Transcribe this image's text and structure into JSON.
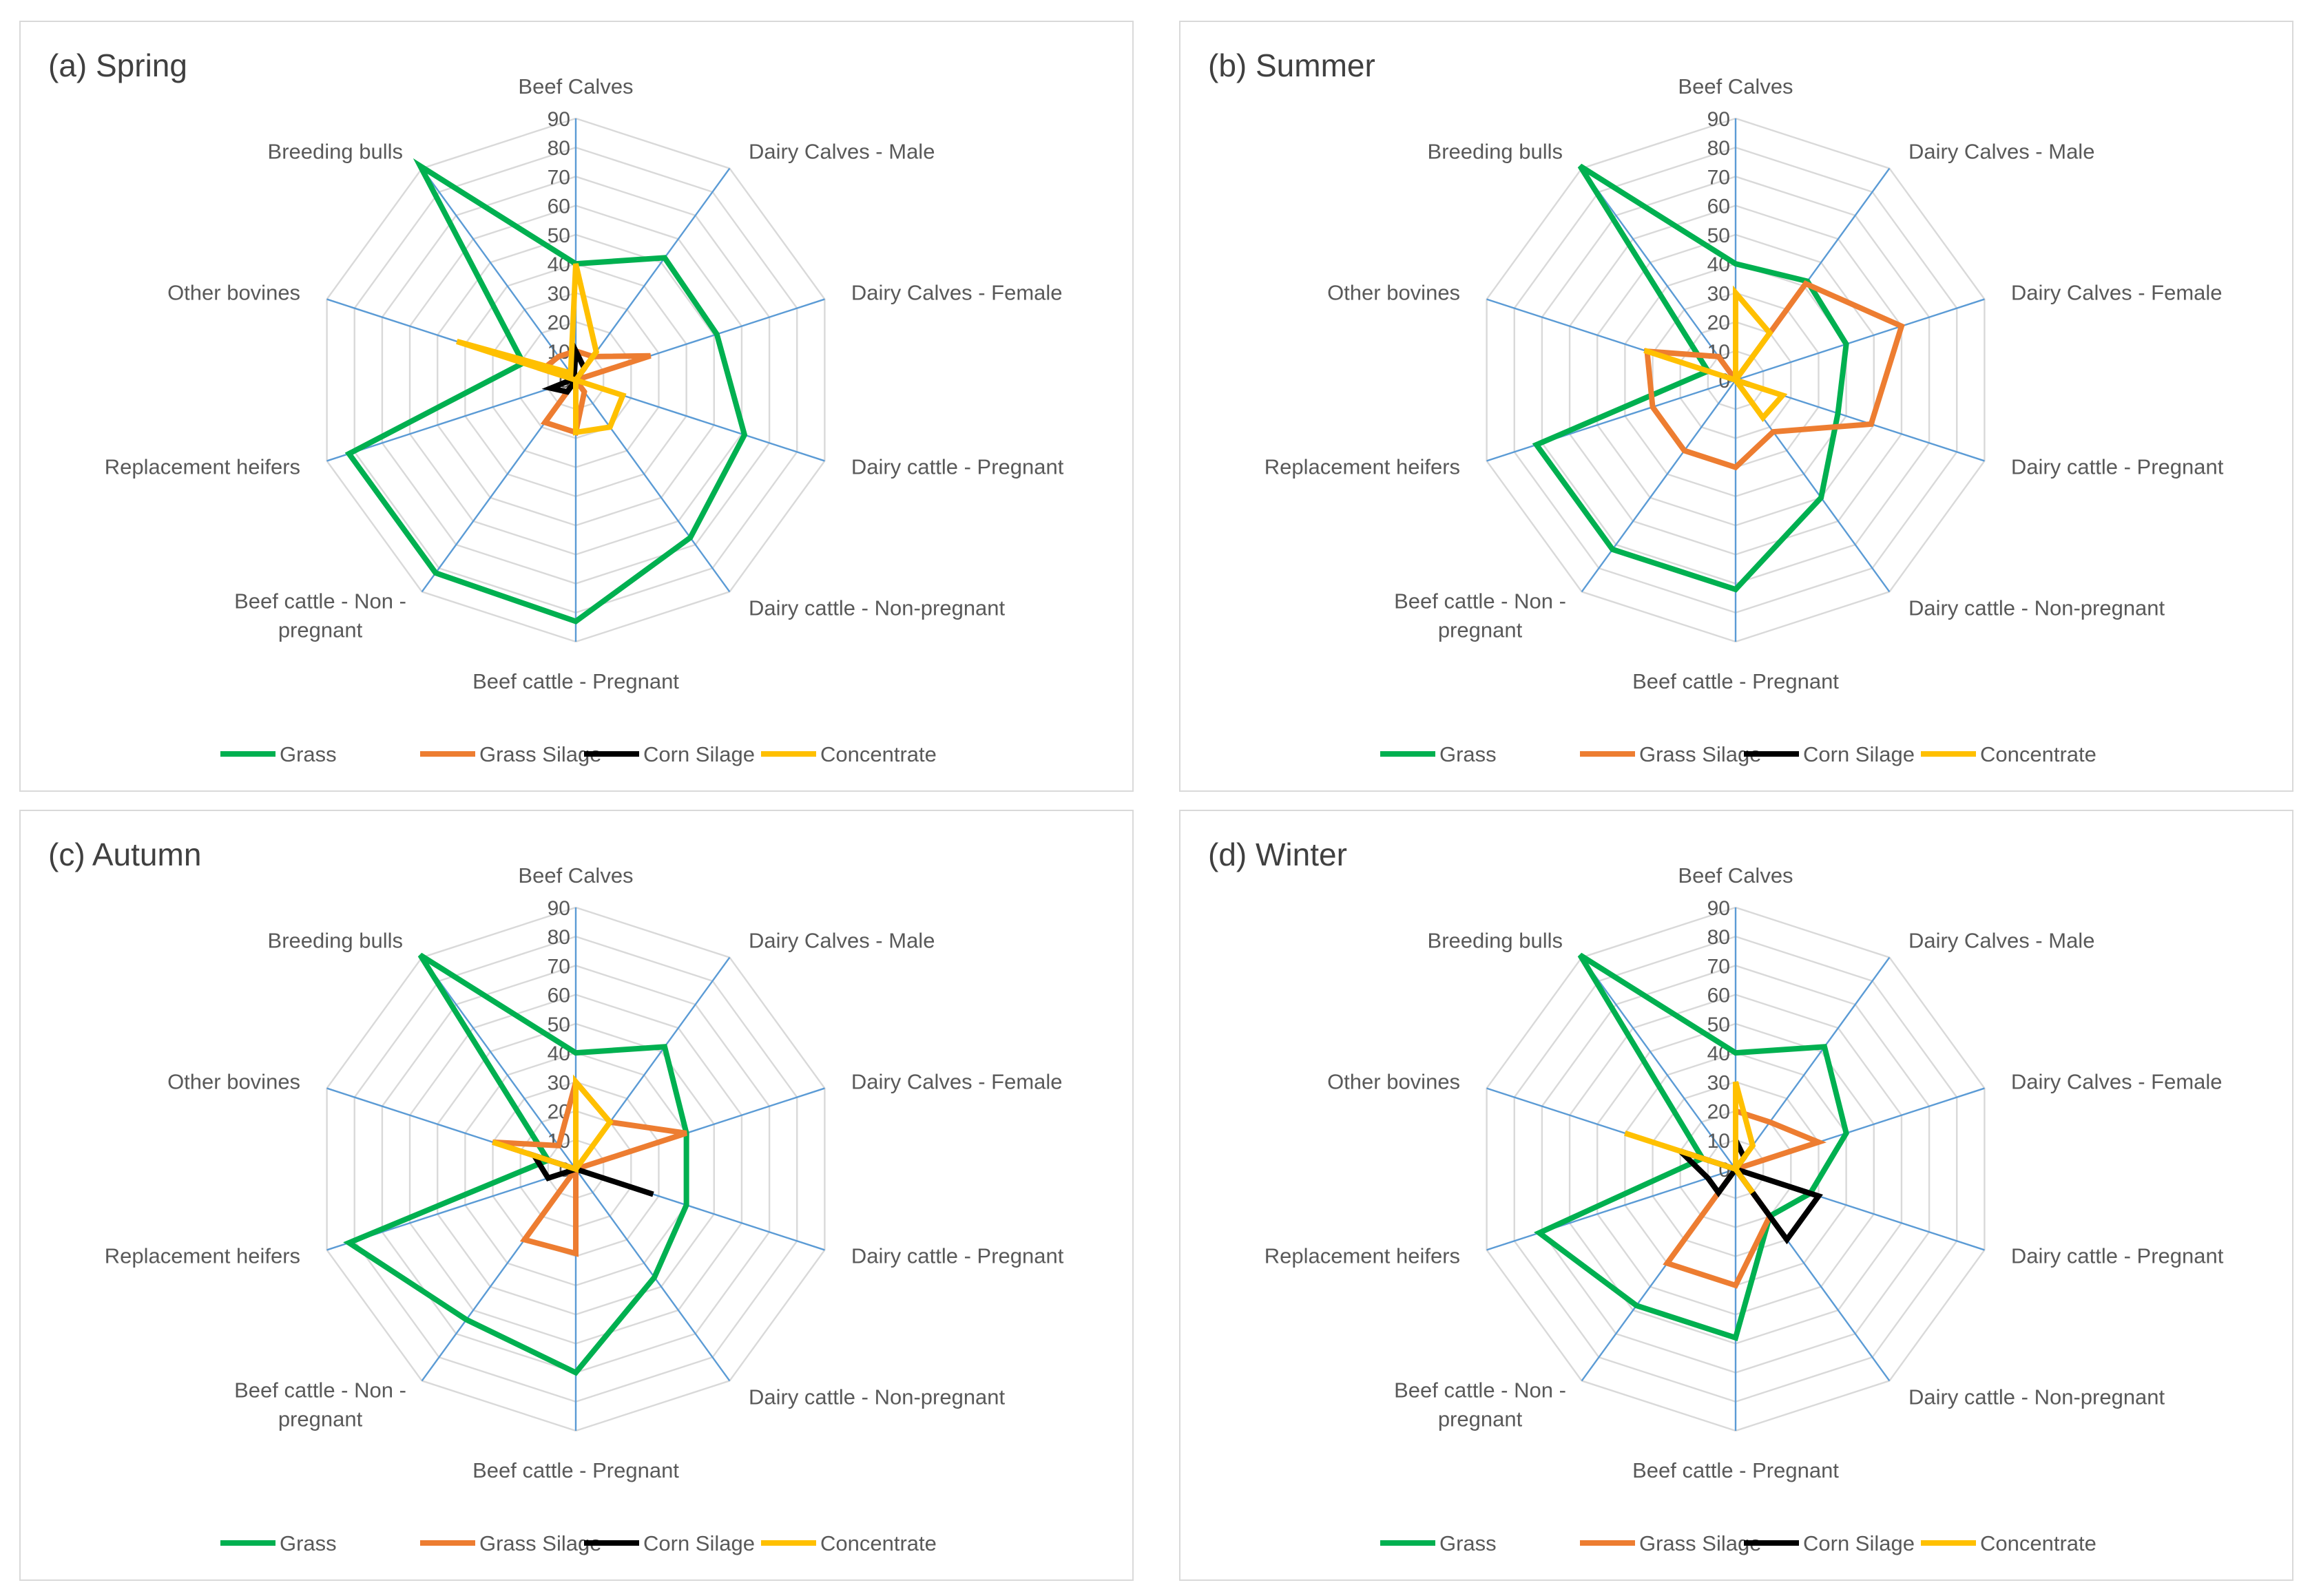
{
  "colors": {
    "Grass": "#00b050",
    "Grass Silage": "#ed7d31",
    "Corn Silage": "#000000",
    "Concentrate": "#ffc000",
    "grid": "#d9d9d9",
    "spoke": "#5b9bd5"
  },
  "chart_data": [
    {
      "type": "radar",
      "title": "(a) Spring",
      "categories": [
        "Beef Calves",
        "Dairy Calves - Male",
        "Dairy Calves - Female",
        "Dairy cattle - Pregnant",
        "Dairy cattle - Non-pregnant",
        "Beef cattle - Pregnant",
        "Beef cattle - Non - pregnant",
        "Replacement heifers",
        "Other bovines",
        "Breeding bulls"
      ],
      "rlim": [
        0,
        90
      ],
      "ticks": [
        0,
        10,
        20,
        30,
        40,
        50,
        60,
        70,
        80,
        90
      ],
      "legend": "bottom",
      "series": [
        {
          "name": "Grass",
          "values": [
            40,
            52,
            51,
            61,
            67,
            83,
            82,
            82,
            19,
            91
          ]
        },
        {
          "name": "Grass Silage",
          "values": [
            10,
            10,
            27,
            0,
            5,
            18,
            18,
            0,
            12,
            10
          ]
        },
        {
          "name": "Corn Silage",
          "values": [
            10,
            5,
            0,
            0,
            0,
            0,
            5,
            9,
            1,
            1
          ]
        },
        {
          "name": "Concentrate",
          "values": [
            40,
            12,
            0,
            17,
            20,
            18,
            0,
            0,
            43,
            3
          ]
        }
      ]
    },
    {
      "type": "radar",
      "title": "(b) Summer",
      "categories": [
        "Beef Calves",
        "Dairy Calves - Male",
        "Dairy Calves - Female",
        "Dairy cattle - Pregnant",
        "Dairy cattle - Non-pregnant",
        "Beef cattle - Pregnant",
        "Beef cattle - Non - pregnant",
        "Replacement heifers",
        "Other bovines",
        "Breeding bulls"
      ],
      "rlim": [
        0,
        90
      ],
      "ticks": [
        0,
        10,
        20,
        30,
        40,
        50,
        60,
        70,
        80,
        90
      ],
      "legend": "bottom",
      "series": [
        {
          "name": "Grass",
          "values": [
            40,
            42,
            40,
            37,
            50,
            72,
            72,
            72,
            10,
            91
          ]
        },
        {
          "name": "Grass Silage",
          "values": [
            0,
            41,
            60,
            49,
            22,
            30,
            30,
            30,
            32,
            10
          ]
        },
        {
          "name": "Corn Silage",
          "values": [
            0,
            0,
            0,
            5,
            0,
            0,
            0,
            0,
            0,
            0
          ]
        },
        {
          "name": "Concentrate",
          "values": [
            30,
            20,
            0,
            17,
            16,
            0,
            0,
            0,
            33,
            0
          ]
        }
      ]
    },
    {
      "type": "radar",
      "title": "(c) Autumn",
      "categories": [
        "Beef Calves",
        "Dairy Calves - Male",
        "Dairy Calves - Female",
        "Dairy cattle - Pregnant",
        "Dairy cattle - Non-pregnant",
        "Beef cattle - Pregnant",
        "Beef cattle - Non - pregnant",
        "Replacement heifers",
        "Other bovines",
        "Breeding bulls"
      ],
      "rlim": [
        0,
        90
      ],
      "ticks": [
        0,
        10,
        20,
        30,
        40,
        50,
        60,
        70,
        80,
        90
      ],
      "legend": "bottom",
      "series": [
        {
          "name": "Grass",
          "values": [
            40,
            52,
            40,
            40,
            46,
            70,
            64,
            82,
            10,
            91
          ]
        },
        {
          "name": "Grass Silage",
          "values": [
            30,
            20,
            40,
            0,
            0,
            29,
            30,
            0,
            30,
            10
          ]
        },
        {
          "name": "Corn Silage",
          "values": [
            0,
            0,
            0,
            28,
            0,
            0,
            0,
            10,
            15,
            0
          ]
        },
        {
          "name": "Concentrate",
          "values": [
            30,
            20,
            0,
            0,
            0,
            0,
            0,
            0,
            30,
            0
          ]
        }
      ]
    },
    {
      "type": "radar",
      "title": "(d) Winter",
      "categories": [
        "Beef Calves",
        "Dairy Calves - Male",
        "Dairy Calves - Female",
        "Dairy cattle - Pregnant",
        "Dairy cattle - Non-pregnant",
        "Beef cattle - Pregnant",
        "Beef cattle - Non - pregnant",
        "Replacement heifers",
        "Other bovines",
        "Breeding bulls"
      ],
      "rlim": [
        0,
        90
      ],
      "ticks": [
        0,
        10,
        20,
        30,
        40,
        50,
        60,
        70,
        80,
        90
      ],
      "legend": "bottom",
      "series": [
        {
          "name": "Grass",
          "values": [
            40,
            52,
            40,
            27,
            20,
            58,
            58,
            71,
            12,
            91
          ]
        },
        {
          "name": "Grass Silage",
          "values": [
            20,
            20,
            30,
            0,
            20,
            40,
            40,
            0,
            17,
            0
          ]
        },
        {
          "name": "Corn Silage",
          "values": [
            10,
            5,
            0,
            30,
            30,
            0,
            10,
            10,
            20,
            0
          ]
        },
        {
          "name": "Concentrate",
          "values": [
            30,
            10,
            0,
            0,
            10,
            0,
            0,
            0,
            40,
            0
          ]
        }
      ]
    }
  ]
}
